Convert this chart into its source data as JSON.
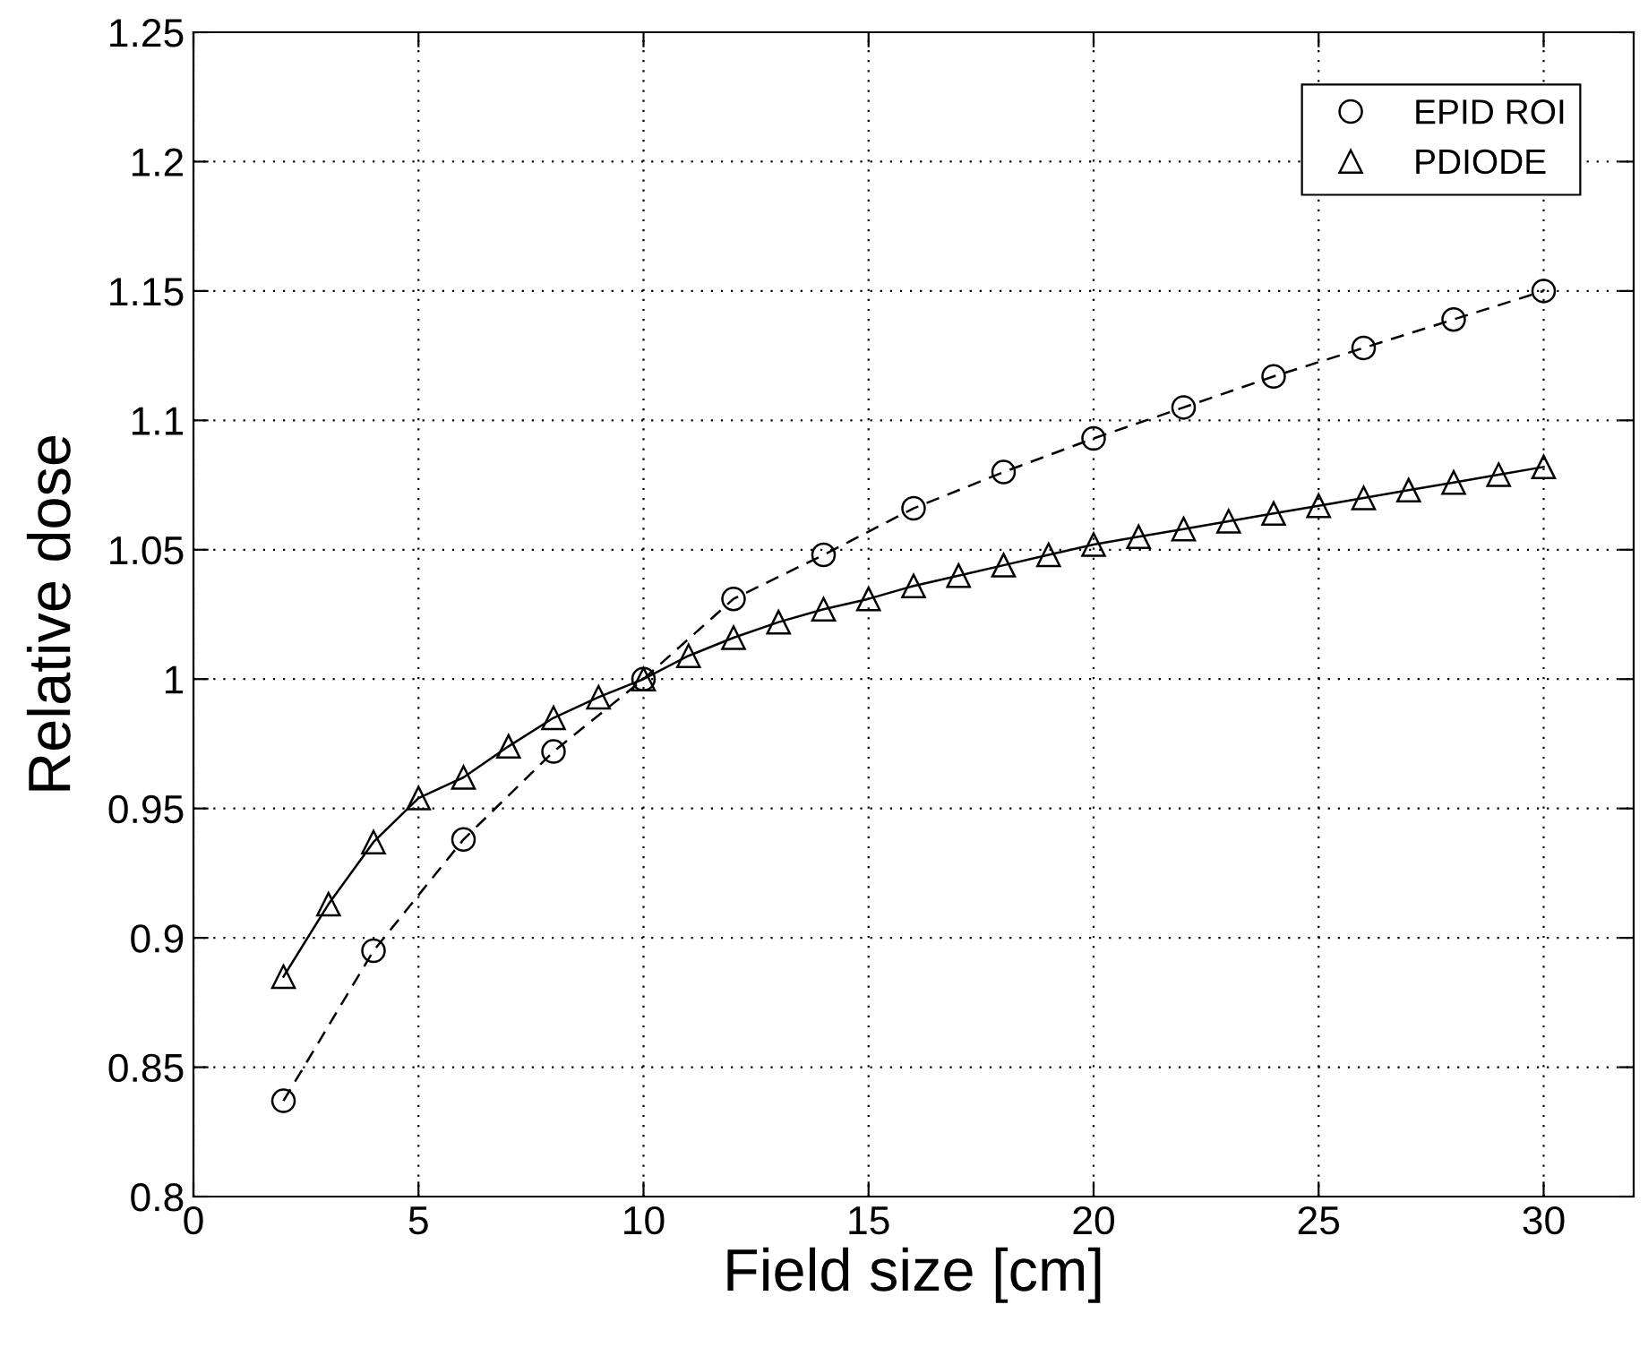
{
  "chart_data": {
    "type": "line",
    "xlabel": "Field size [cm]",
    "ylabel": "Relative dose",
    "xlim": [
      0,
      32
    ],
    "xticks": [
      0,
      5,
      10,
      15,
      20,
      25,
      30
    ],
    "ylim": [
      0.8,
      1.25
    ],
    "yticks": [
      0.8,
      0.85,
      0.9,
      0.95,
      1,
      1.05,
      1.1,
      1.15,
      1.2,
      1.25
    ],
    "grid": true,
    "legend": "top right",
    "series": [
      {
        "name": "EPID ROI",
        "color": "#000000",
        "marker": "circle",
        "line_style": "dashed",
        "x": [
          2,
          4,
          6,
          8,
          10,
          12,
          14,
          16,
          18,
          20,
          22,
          24,
          26,
          28,
          30
        ],
        "values": [
          0.837,
          0.895,
          0.938,
          0.972,
          1.0,
          1.031,
          1.048,
          1.066,
          1.08,
          1.093,
          1.105,
          1.117,
          1.128,
          1.139,
          1.15
        ]
      },
      {
        "name": "PDIODE",
        "color": "#000000",
        "marker": "triangle",
        "line_style": "solid",
        "x": [
          2,
          3,
          4,
          5,
          6,
          7,
          8,
          9,
          10,
          11,
          12,
          13,
          14,
          15,
          16,
          17,
          18,
          19,
          20,
          21,
          22,
          23,
          24,
          25,
          26,
          27,
          28,
          29,
          30
        ],
        "values": [
          0.885,
          0.913,
          0.937,
          0.954,
          0.962,
          0.974,
          0.985,
          0.993,
          1.0,
          1.009,
          1.016,
          1.022,
          1.027,
          1.031,
          1.036,
          1.04,
          1.044,
          1.048,
          1.052,
          1.055,
          1.058,
          1.061,
          1.064,
          1.067,
          1.07,
          1.073,
          1.076,
          1.079,
          1.082
        ]
      }
    ]
  }
}
